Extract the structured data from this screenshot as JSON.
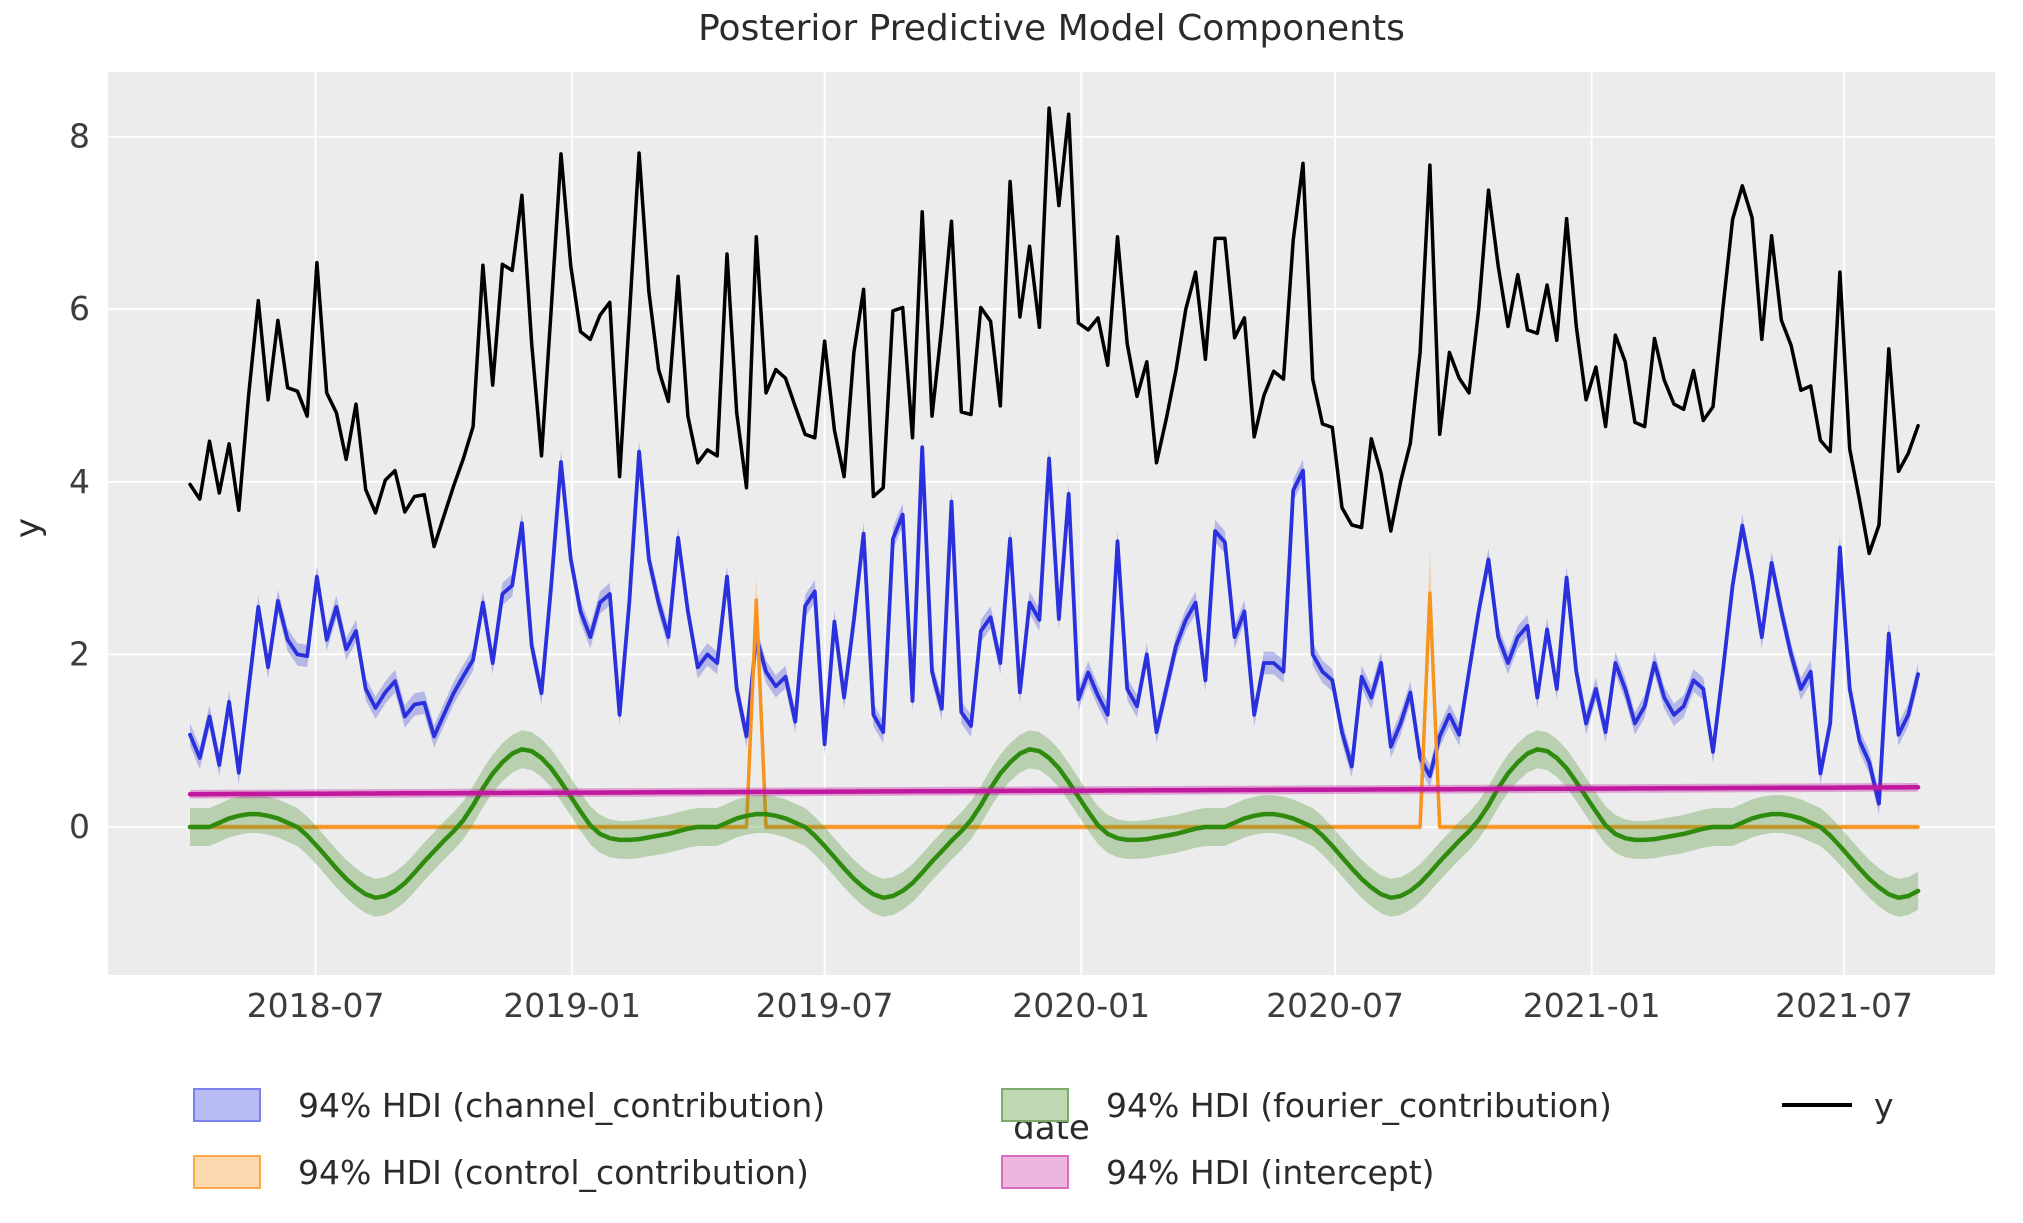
{
  "title": "Posterior Predictive Model Components",
  "axes": {
    "xlabel": "date",
    "ylabel": "y",
    "yticks": [
      0,
      2,
      4,
      6,
      8
    ],
    "xticks": [
      {
        "label": "2018-07",
        "day": 90
      },
      {
        "label": "2019-01",
        "day": 274
      },
      {
        "label": "2019-07",
        "day": 455
      },
      {
        "label": "2020-01",
        "day": 639
      },
      {
        "label": "2020-07",
        "day": 821
      },
      {
        "label": "2021-01",
        "day": 1005
      },
      {
        "label": "2021-07",
        "day": 1186
      }
    ]
  },
  "legend": [
    {
      "type": "patch",
      "label": "94% HDI (channel_contribution)",
      "fill": "#b8bcf2",
      "edge": "#7b82ec"
    },
    {
      "type": "patch",
      "label": "94% HDI (control_contribution)",
      "fill": "#fcd9ae",
      "edge": "#f8a94f"
    },
    {
      "type": "patch",
      "label": "94% HDI (fourier_contribution)",
      "fill": "#bed8b1",
      "edge": "#7bab67"
    },
    {
      "type": "patch",
      "label": "94% HDI (intercept)",
      "fill": "#edb6df",
      "edge": "#d86cc0"
    },
    {
      "type": "line",
      "label": "y",
      "color": "#000000"
    }
  ],
  "style": {
    "plot_bg": "#ececec",
    "grid_color": "#ffffff",
    "text_color": "#3d3d3d"
  },
  "chart_data": {
    "type": "line",
    "title": "Posterior Predictive Model Components",
    "xlabel": "date",
    "ylabel": "y",
    "x_start_date": "2018-04-02",
    "x_step_days": 7,
    "n_points": 178,
    "ylim": [
      -1.72,
      8.74
    ],
    "grid": true,
    "legend_position": "bottom",
    "series": [
      {
        "name": "y",
        "kind": "line",
        "color": "#000000",
        "linewidth": 3.5,
        "values": [
          3.97,
          3.8,
          4.47,
          3.87,
          4.44,
          3.67,
          5.0,
          6.1,
          4.95,
          5.87,
          5.09,
          5.05,
          4.76,
          6.54,
          5.03,
          4.8,
          4.26,
          4.9,
          3.91,
          3.64,
          4.02,
          4.13,
          3.65,
          3.83,
          3.85,
          3.25,
          3.6,
          3.95,
          4.27,
          4.64,
          6.51,
          5.12,
          6.52,
          6.45,
          7.32,
          5.6,
          4.3,
          6.0,
          7.8,
          6.5,
          5.74,
          5.65,
          5.93,
          6.08,
          4.06,
          5.9,
          7.81,
          6.2,
          5.3,
          4.93,
          6.38,
          4.76,
          4.22,
          4.37,
          4.3,
          6.64,
          4.8,
          3.93,
          6.84,
          5.03,
          5.3,
          5.2,
          4.87,
          4.55,
          4.51,
          5.63,
          4.6,
          4.06,
          5.5,
          6.23,
          3.83,
          3.93,
          5.98,
          6.02,
          4.51,
          7.13,
          4.76,
          5.8,
          7.02,
          4.81,
          4.78,
          6.02,
          5.86,
          4.88,
          7.48,
          5.91,
          6.73,
          5.79,
          8.33,
          7.2,
          8.26,
          5.84,
          5.76,
          5.9,
          5.35,
          6.84,
          5.6,
          4.99,
          5.39,
          4.22,
          4.73,
          5.3,
          6.0,
          6.43,
          5.42,
          6.82,
          6.82,
          5.67,
          5.9,
          4.52,
          5.0,
          5.28,
          5.19,
          6.8,
          7.69,
          5.19,
          4.67,
          4.63,
          3.7,
          3.5,
          3.47,
          4.5,
          4.1,
          3.43,
          4.0,
          4.45,
          5.5,
          7.67,
          4.55,
          5.5,
          5.2,
          5.03,
          6.0,
          7.38,
          6.5,
          5.8,
          6.4,
          5.76,
          5.72,
          6.28,
          5.64,
          7.05,
          5.8,
          4.95,
          5.33,
          4.64,
          5.7,
          5.39,
          4.69,
          4.64,
          5.66,
          5.18,
          4.9,
          4.84,
          5.29,
          4.71,
          4.87,
          6.0,
          7.04,
          7.43,
          7.06,
          5.65,
          6.85,
          5.87,
          5.58,
          5.06,
          5.11,
          4.48,
          4.35,
          6.43,
          4.38,
          3.79,
          3.17,
          3.5,
          5.54,
          4.12,
          4.33,
          4.65
        ]
      },
      {
        "name": "channel_contribution",
        "kind": "line+band",
        "hdi": "94%",
        "color": "#2a31dc",
        "band_fill": "rgba(64,72,220,0.32)",
        "band_halfwidth": 0.13,
        "linewidth": 3.8,
        "values": [
          1.07,
          0.8,
          1.28,
          0.72,
          1.45,
          0.63,
          1.6,
          2.55,
          1.85,
          2.62,
          2.17,
          2.0,
          1.98,
          2.9,
          2.17,
          2.55,
          2.06,
          2.27,
          1.6,
          1.38,
          1.56,
          1.69,
          1.28,
          1.42,
          1.44,
          1.05,
          1.3,
          1.55,
          1.75,
          1.94,
          2.6,
          1.9,
          2.7,
          2.8,
          3.52,
          2.1,
          1.55,
          2.8,
          4.23,
          3.1,
          2.5,
          2.2,
          2.6,
          2.7,
          1.3,
          2.6,
          4.35,
          3.1,
          2.6,
          2.2,
          3.35,
          2.5,
          1.85,
          2.0,
          1.9,
          2.9,
          1.6,
          1.05,
          2.2,
          1.8,
          1.63,
          1.74,
          1.22,
          2.56,
          2.73,
          0.96,
          2.38,
          1.5,
          2.4,
          3.4,
          1.3,
          1.1,
          3.34,
          3.62,
          1.46,
          4.4,
          1.8,
          1.37,
          3.77,
          1.33,
          1.17,
          2.27,
          2.43,
          1.9,
          3.34,
          1.56,
          2.6,
          2.4,
          4.27,
          2.41,
          3.86,
          1.48,
          1.79,
          1.52,
          1.3,
          3.31,
          1.6,
          1.4,
          2.0,
          1.1,
          1.6,
          2.1,
          2.4,
          2.6,
          1.7,
          3.43,
          3.3,
          2.2,
          2.5,
          1.3,
          1.9,
          1.9,
          1.8,
          3.9,
          4.13,
          2.0,
          1.8,
          1.7,
          1.1,
          0.7,
          1.74,
          1.5,
          1.9,
          0.93,
          1.2,
          1.56,
          0.8,
          0.59,
          1.05,
          1.3,
          1.07,
          1.8,
          2.5,
          3.1,
          2.2,
          1.9,
          2.2,
          2.33,
          1.5,
          2.29,
          1.6,
          2.89,
          1.8,
          1.2,
          1.6,
          1.1,
          1.9,
          1.6,
          1.2,
          1.4,
          1.9,
          1.5,
          1.3,
          1.4,
          1.7,
          1.6,
          0.87,
          1.8,
          2.8,
          3.49,
          2.9,
          2.2,
          3.06,
          2.5,
          2.0,
          1.6,
          1.8,
          0.62,
          1.2,
          3.24,
          1.6,
          1.0,
          0.75,
          0.27,
          2.24,
          1.07,
          1.3,
          1.77
        ]
      },
      {
        "name": "control_contribution",
        "kind": "line+band",
        "hdi": "94%",
        "color": "#f7941f",
        "band_fill": "rgba(247,148,31,0.32)",
        "band_halfwidth": 0.03,
        "linewidth": 3.5,
        "band_overrides": {
          "58": [
            2.3,
            2.9
          ],
          "127": [
            2.35,
            3.22
          ]
        },
        "values": [
          0,
          0,
          0,
          0,
          0,
          0,
          0,
          0,
          0,
          0,
          0,
          0,
          0,
          0,
          0,
          0,
          0,
          0,
          0,
          0,
          0,
          0,
          0,
          0,
          0,
          0,
          0,
          0,
          0,
          0,
          0,
          0,
          0,
          0,
          0,
          0,
          0,
          0,
          0,
          0,
          0,
          0,
          0,
          0,
          0,
          0,
          0,
          0,
          0,
          0,
          0,
          0,
          0,
          0,
          0,
          0,
          0,
          0,
          2.63,
          0,
          0,
          0,
          0,
          0,
          0,
          0,
          0,
          0,
          0,
          0,
          0,
          0,
          0,
          0,
          0,
          0,
          0,
          0,
          0,
          0,
          0,
          0,
          0,
          0,
          0,
          0,
          0,
          0,
          0,
          0,
          0,
          0,
          0,
          0,
          0,
          0,
          0,
          0,
          0,
          0,
          0,
          0,
          0,
          0,
          0,
          0,
          0,
          0,
          0,
          0,
          0,
          0,
          0,
          0,
          0,
          0,
          0,
          0,
          0,
          0,
          0,
          0,
          0,
          0,
          0,
          0,
          0,
          2.71,
          0,
          0,
          0,
          0,
          0,
          0,
          0,
          0,
          0,
          0,
          0,
          0,
          0,
          0,
          0,
          0,
          0,
          0,
          0,
          0,
          0,
          0,
          0,
          0,
          0,
          0,
          0,
          0,
          0,
          0,
          0,
          0,
          0,
          0,
          0,
          0,
          0,
          0,
          0,
          0,
          0,
          0,
          0,
          0,
          0,
          0,
          0,
          0,
          0,
          0
        ]
      },
      {
        "name": "fourier_contribution",
        "kind": "line+band",
        "hdi": "94%",
        "color": "#2f8b0d",
        "band_fill": "rgba(76,150,50,0.32)",
        "band_halfwidth": 0.22,
        "linewidth": 4.5,
        "values": [
          0.0,
          0.0,
          0.0,
          0.05,
          0.1,
          0.13,
          0.15,
          0.15,
          0.13,
          0.1,
          0.05,
          0.0,
          -0.1,
          -0.22,
          -0.35,
          -0.48,
          -0.6,
          -0.7,
          -0.78,
          -0.82,
          -0.8,
          -0.74,
          -0.65,
          -0.53,
          -0.4,
          -0.28,
          -0.16,
          -0.05,
          0.08,
          0.25,
          0.45,
          0.62,
          0.75,
          0.85,
          0.9,
          0.88,
          0.8,
          0.68,
          0.52,
          0.35,
          0.18,
          0.02,
          -0.08,
          -0.13,
          -0.15,
          -0.15,
          -0.14,
          -0.12,
          -0.1,
          -0.08,
          -0.05,
          -0.02,
          0.0,
          0.0,
          0.0,
          0.05,
          0.1,
          0.13,
          0.15,
          0.15,
          0.13,
          0.1,
          0.05,
          0.0,
          -0.1,
          -0.22,
          -0.35,
          -0.48,
          -0.6,
          -0.7,
          -0.78,
          -0.82,
          -0.8,
          -0.74,
          -0.65,
          -0.53,
          -0.4,
          -0.28,
          -0.16,
          -0.05,
          0.08,
          0.25,
          0.45,
          0.62,
          0.75,
          0.85,
          0.9,
          0.88,
          0.8,
          0.68,
          0.52,
          0.35,
          0.18,
          0.02,
          -0.08,
          -0.13,
          -0.15,
          -0.15,
          -0.14,
          -0.12,
          -0.1,
          -0.08,
          -0.05,
          -0.02,
          0.0,
          0.0,
          0.0,
          0.05,
          0.1,
          0.13,
          0.15,
          0.15,
          0.13,
          0.1,
          0.05,
          0.0,
          -0.1,
          -0.22,
          -0.35,
          -0.48,
          -0.6,
          -0.7,
          -0.78,
          -0.82,
          -0.8,
          -0.74,
          -0.65,
          -0.53,
          -0.4,
          -0.28,
          -0.16,
          -0.05,
          0.08,
          0.25,
          0.45,
          0.62,
          0.75,
          0.85,
          0.9,
          0.88,
          0.8,
          0.68,
          0.52,
          0.35,
          0.18,
          0.02,
          -0.08,
          -0.13,
          -0.15,
          -0.15,
          -0.14,
          -0.12,
          -0.1,
          -0.08,
          -0.05,
          -0.02,
          0.0,
          0.0,
          0.0,
          0.05,
          0.1,
          0.13,
          0.15,
          0.15,
          0.13,
          0.1,
          0.05,
          0.0,
          -0.1,
          -0.22,
          -0.35,
          -0.48,
          -0.6,
          -0.7,
          -0.78,
          -0.82,
          -0.8,
          -0.74
        ]
      },
      {
        "name": "intercept",
        "kind": "line+band",
        "hdi": "94%",
        "color": "#c0189f",
        "band_fill": "rgba(192,24,159,0.35)",
        "band_halfwidth": 0.05,
        "linewidth": 4.5,
        "values_linear": {
          "start": 0.38,
          "end": 0.46
        }
      }
    ]
  }
}
